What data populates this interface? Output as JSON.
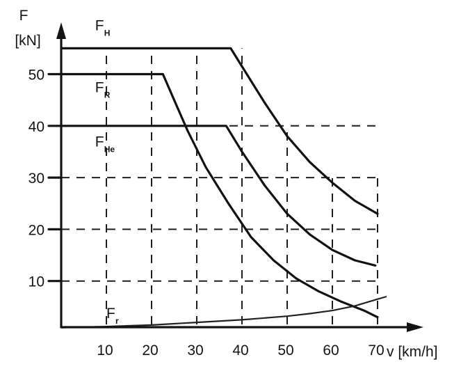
{
  "chart_data": {
    "type": "line",
    "title": "",
    "xlabel": "v [km/h]",
    "ylabel_main": "F",
    "ylabel_unit": "[kN]",
    "xlim": [
      0,
      73
    ],
    "ylim": [
      0,
      58
    ],
    "x_ticks": [
      10,
      20,
      30,
      40,
      50,
      60,
      70
    ],
    "y_ticks": [
      10,
      20,
      30,
      40,
      50
    ],
    "grid": true,
    "legend": "none",
    "series": [
      {
        "name": "F",
        "subscript": "H",
        "points": [
          [
            0,
            55
          ],
          [
            37.5,
            55
          ],
          [
            40,
            51.5
          ],
          [
            45,
            44.5
          ],
          [
            50,
            38
          ],
          [
            55,
            33
          ],
          [
            60,
            29
          ],
          [
            65,
            25.5
          ],
          [
            70,
            23
          ]
        ]
      },
      {
        "name": "F",
        "subscript": "R",
        "points": [
          [
            0,
            50
          ],
          [
            22.5,
            50
          ],
          [
            25,
            45
          ],
          [
            28,
            39
          ],
          [
            32,
            32
          ],
          [
            37,
            25
          ],
          [
            42,
            18.5
          ],
          [
            47,
            14
          ],
          [
            52,
            10.5
          ],
          [
            57,
            8
          ],
          [
            62,
            6
          ],
          [
            67,
            4.3
          ],
          [
            70,
            3
          ]
        ]
      },
      {
        "name": "F",
        "subscript": "He",
        "points": [
          [
            0,
            40
          ],
          [
            36.5,
            40
          ],
          [
            40,
            35
          ],
          [
            45,
            28.5
          ],
          [
            50,
            23
          ],
          [
            55,
            19
          ],
          [
            60,
            16
          ],
          [
            65,
            14
          ],
          [
            69.5,
            13
          ]
        ]
      },
      {
        "name": "F",
        "subscript": "r",
        "points": [
          [
            0,
            1
          ],
          [
            10,
            1.2
          ],
          [
            20,
            1.5
          ],
          [
            30,
            2
          ],
          [
            40,
            2.5
          ],
          [
            50,
            3.2
          ],
          [
            55,
            3.7
          ],
          [
            60,
            4.3
          ],
          [
            65,
            5.2
          ],
          [
            70,
            6.5
          ],
          [
            72,
            7
          ]
        ]
      }
    ]
  }
}
